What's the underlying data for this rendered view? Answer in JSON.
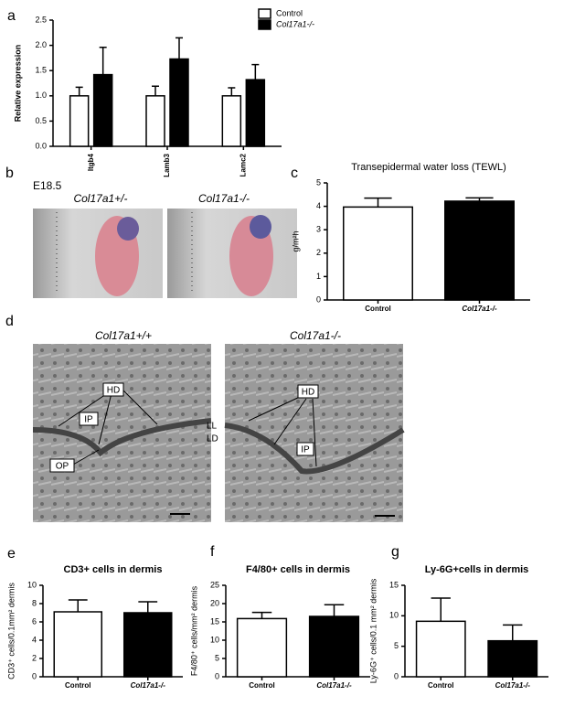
{
  "panel_labels": [
    "a",
    "b",
    "c",
    "d",
    "e",
    "f",
    "g"
  ],
  "figures": [
    {
      "stage": "E18.5",
      "captions": [
        "Col17a1+/-",
        "Col17a1-/-"
      ]
    },
    {
      "captions": [
        "Col17a1+/+",
        "Col17a1-/-"
      ],
      "annotations": [
        "HD",
        "IP",
        "OP",
        "LL",
        "LD",
        "HD",
        "IP"
      ]
    }
  ],
  "chart_data": [
    {
      "type": "bar",
      "ylabel": "Relative expression",
      "categories": [
        "Itgb4",
        "Lamb3",
        "Lamc2"
      ],
      "series": [
        {
          "name": "Control",
          "color": "#ffffff",
          "values": [
            1.0,
            1.0,
            1.0
          ],
          "errors": [
            0.17,
            0.19,
            0.16
          ]
        },
        {
          "name": "Col17a1-/-",
          "color": "#000000",
          "values": [
            1.42,
            1.73,
            1.32
          ],
          "errors": [
            0.54,
            0.42,
            0.3
          ]
        }
      ],
      "ylim": [
        0,
        2.5
      ],
      "yticks": [
        {
          "value": 0,
          "label": "0.0"
        },
        0.5,
        {
          "value": 1,
          "label": "1.0"
        },
        1.5,
        {
          "value": 2,
          "label": "2.0"
        },
        2.5
      ]
    },
    {
      "type": "bar",
      "title": "Transepidermal water loss (TEWL)",
      "ylabel": "g/m²h",
      "categories": [
        "Control",
        "Col17a1-/-"
      ],
      "values": [
        3.97,
        4.22
      ],
      "errors": [
        0.38,
        0.14
      ],
      "colors": [
        "#ffffff",
        "#000000"
      ],
      "ylim": [
        0,
        5
      ],
      "yticks": [
        0,
        1,
        2,
        3,
        4,
        5
      ]
    },
    {
      "type": "bar",
      "title": "CD3+ cells in dermis",
      "ylabel": "CD3⁺ cells/0.1mm² dermis",
      "categories": [
        "Control",
        "Col17a1-/-"
      ],
      "values": [
        7.1,
        7.0
      ],
      "errors": [
        1.3,
        1.2
      ],
      "colors": [
        "#ffffff",
        "#000000"
      ],
      "ylim": [
        0,
        10
      ],
      "yticks": [
        0,
        2,
        4,
        6,
        8,
        10
      ]
    },
    {
      "type": "bar",
      "title": "F4/80+ cells in dermis",
      "ylabel": "F4/80⁺ cells/mm² dermis",
      "categories": [
        "Control",
        "Col17a1-/-"
      ],
      "values": [
        15.9,
        16.5
      ],
      "errors": [
        1.7,
        3.2
      ],
      "colors": [
        "#ffffff",
        "#000000"
      ],
      "ylim": [
        0,
        25
      ],
      "yticks": [
        0,
        5,
        10,
        15,
        20,
        25
      ]
    },
    {
      "type": "bar",
      "title": "Ly-6G+cells in dermis",
      "ylabel": "Ly-6G⁺ cells/0.1 mm² dermis",
      "categories": [
        "Control",
        "Col17a1-/-"
      ],
      "values": [
        9.1,
        5.9
      ],
      "errors": [
        3.8,
        2.6
      ],
      "colors": [
        "#ffffff",
        "#000000"
      ],
      "ylim": [
        0,
        15
      ],
      "yticks": [
        0,
        5,
        10,
        15
      ]
    }
  ]
}
